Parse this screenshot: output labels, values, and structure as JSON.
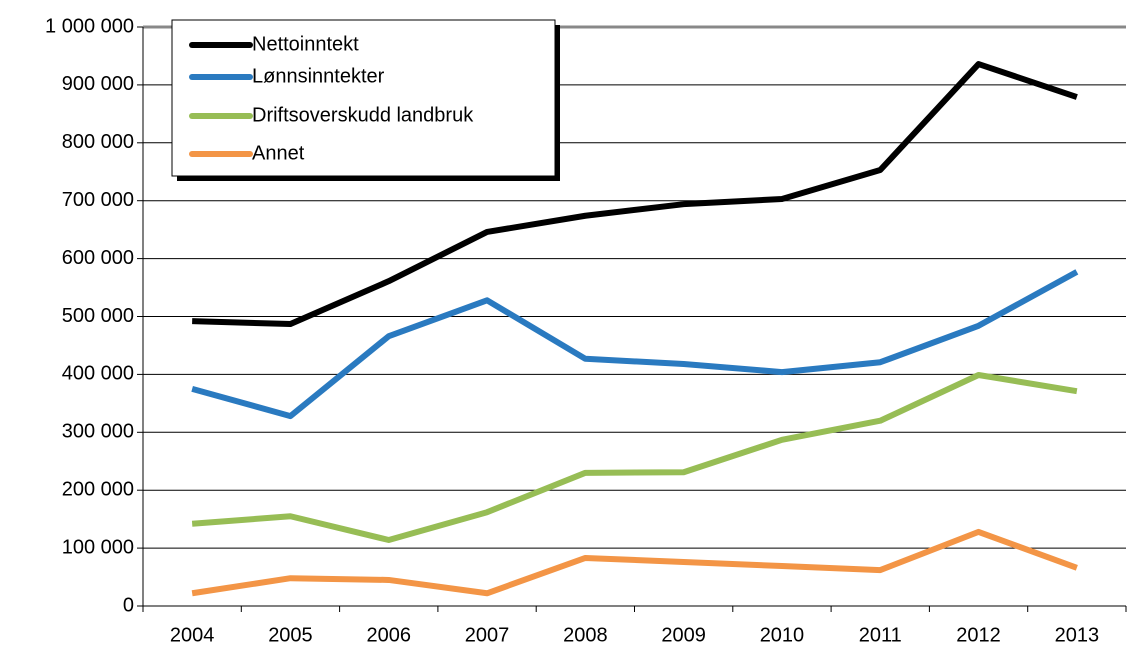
{
  "chart_data": {
    "type": "line",
    "categories": [
      "2004",
      "2005",
      "2006",
      "2007",
      "2008",
      "2009",
      "2010",
      "2011",
      "2012",
      "2013"
    ],
    "series": [
      {
        "name": "Nettoinntekt",
        "color": "#000000",
        "values": [
          492000,
          487000,
          561000,
          646000,
          674000,
          694000,
          703000,
          753000,
          936000,
          879000
        ]
      },
      {
        "name": "Lønnsinntekter",
        "color": "#2a7ac0",
        "values": [
          375000,
          328000,
          466000,
          528000,
          427000,
          418000,
          404000,
          421000,
          484000,
          577000
        ]
      },
      {
        "name": "Driftsoverskudd landbruk",
        "color": "#97bd55",
        "values": [
          142000,
          155000,
          114000,
          162000,
          230000,
          231000,
          287000,
          320000,
          399000,
          371000
        ]
      },
      {
        "name": "Annet",
        "color": "#f39546",
        "values": [
          22000,
          48000,
          45000,
          22000,
          83000,
          76000,
          69000,
          62000,
          128000,
          66000
        ]
      }
    ],
    "ylim": [
      0,
      1000000
    ],
    "yticks": [
      0,
      {
        "value": 100000,
        "label": "100 000"
      },
      {
        "value": 200000,
        "label": "200 000"
      },
      {
        "value": 300000,
        "label": "300 000"
      },
      {
        "value": 400000,
        "label": "400 000"
      },
      {
        "value": 500000,
        "label": "500 000"
      },
      {
        "value": 600000,
        "label": "600 000"
      },
      {
        "value": 700000,
        "label": "700 000"
      },
      {
        "value": 800000,
        "label": "800 000"
      },
      {
        "value": 900000,
        "label": "900 000"
      },
      {
        "value": 1000000,
        "label": "1 000 000"
      }
    ],
    "grid": true,
    "legend": "upper left"
  }
}
